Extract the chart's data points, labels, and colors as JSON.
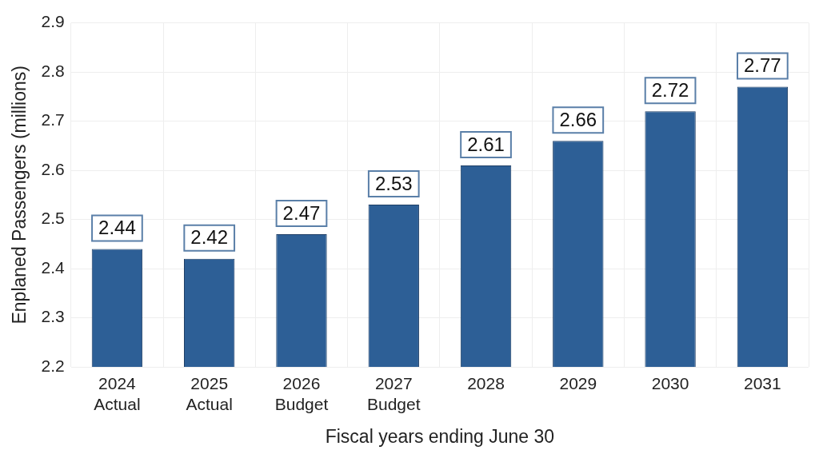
{
  "chart_data": {
    "type": "bar",
    "xlabel": "Fiscal years ending June 30",
    "ylabel": "Enplaned Passengers (millions)",
    "categories": [
      "2024\nActual",
      "2025\nActual",
      "2026\nBudget",
      "2027\nBudget",
      "2028",
      "2029",
      "2030",
      "2031"
    ],
    "values": [
      2.44,
      2.42,
      2.47,
      2.53,
      2.61,
      2.66,
      2.72,
      2.77
    ],
    "color": "#2d5f96",
    "ylim": [
      2.2,
      2.9
    ],
    "yticks": [
      2.2,
      2.3,
      2.4,
      2.5,
      2.6,
      2.7,
      2.8,
      2.9
    ],
    "grid": true,
    "data_labels": true,
    "legend": false
  }
}
